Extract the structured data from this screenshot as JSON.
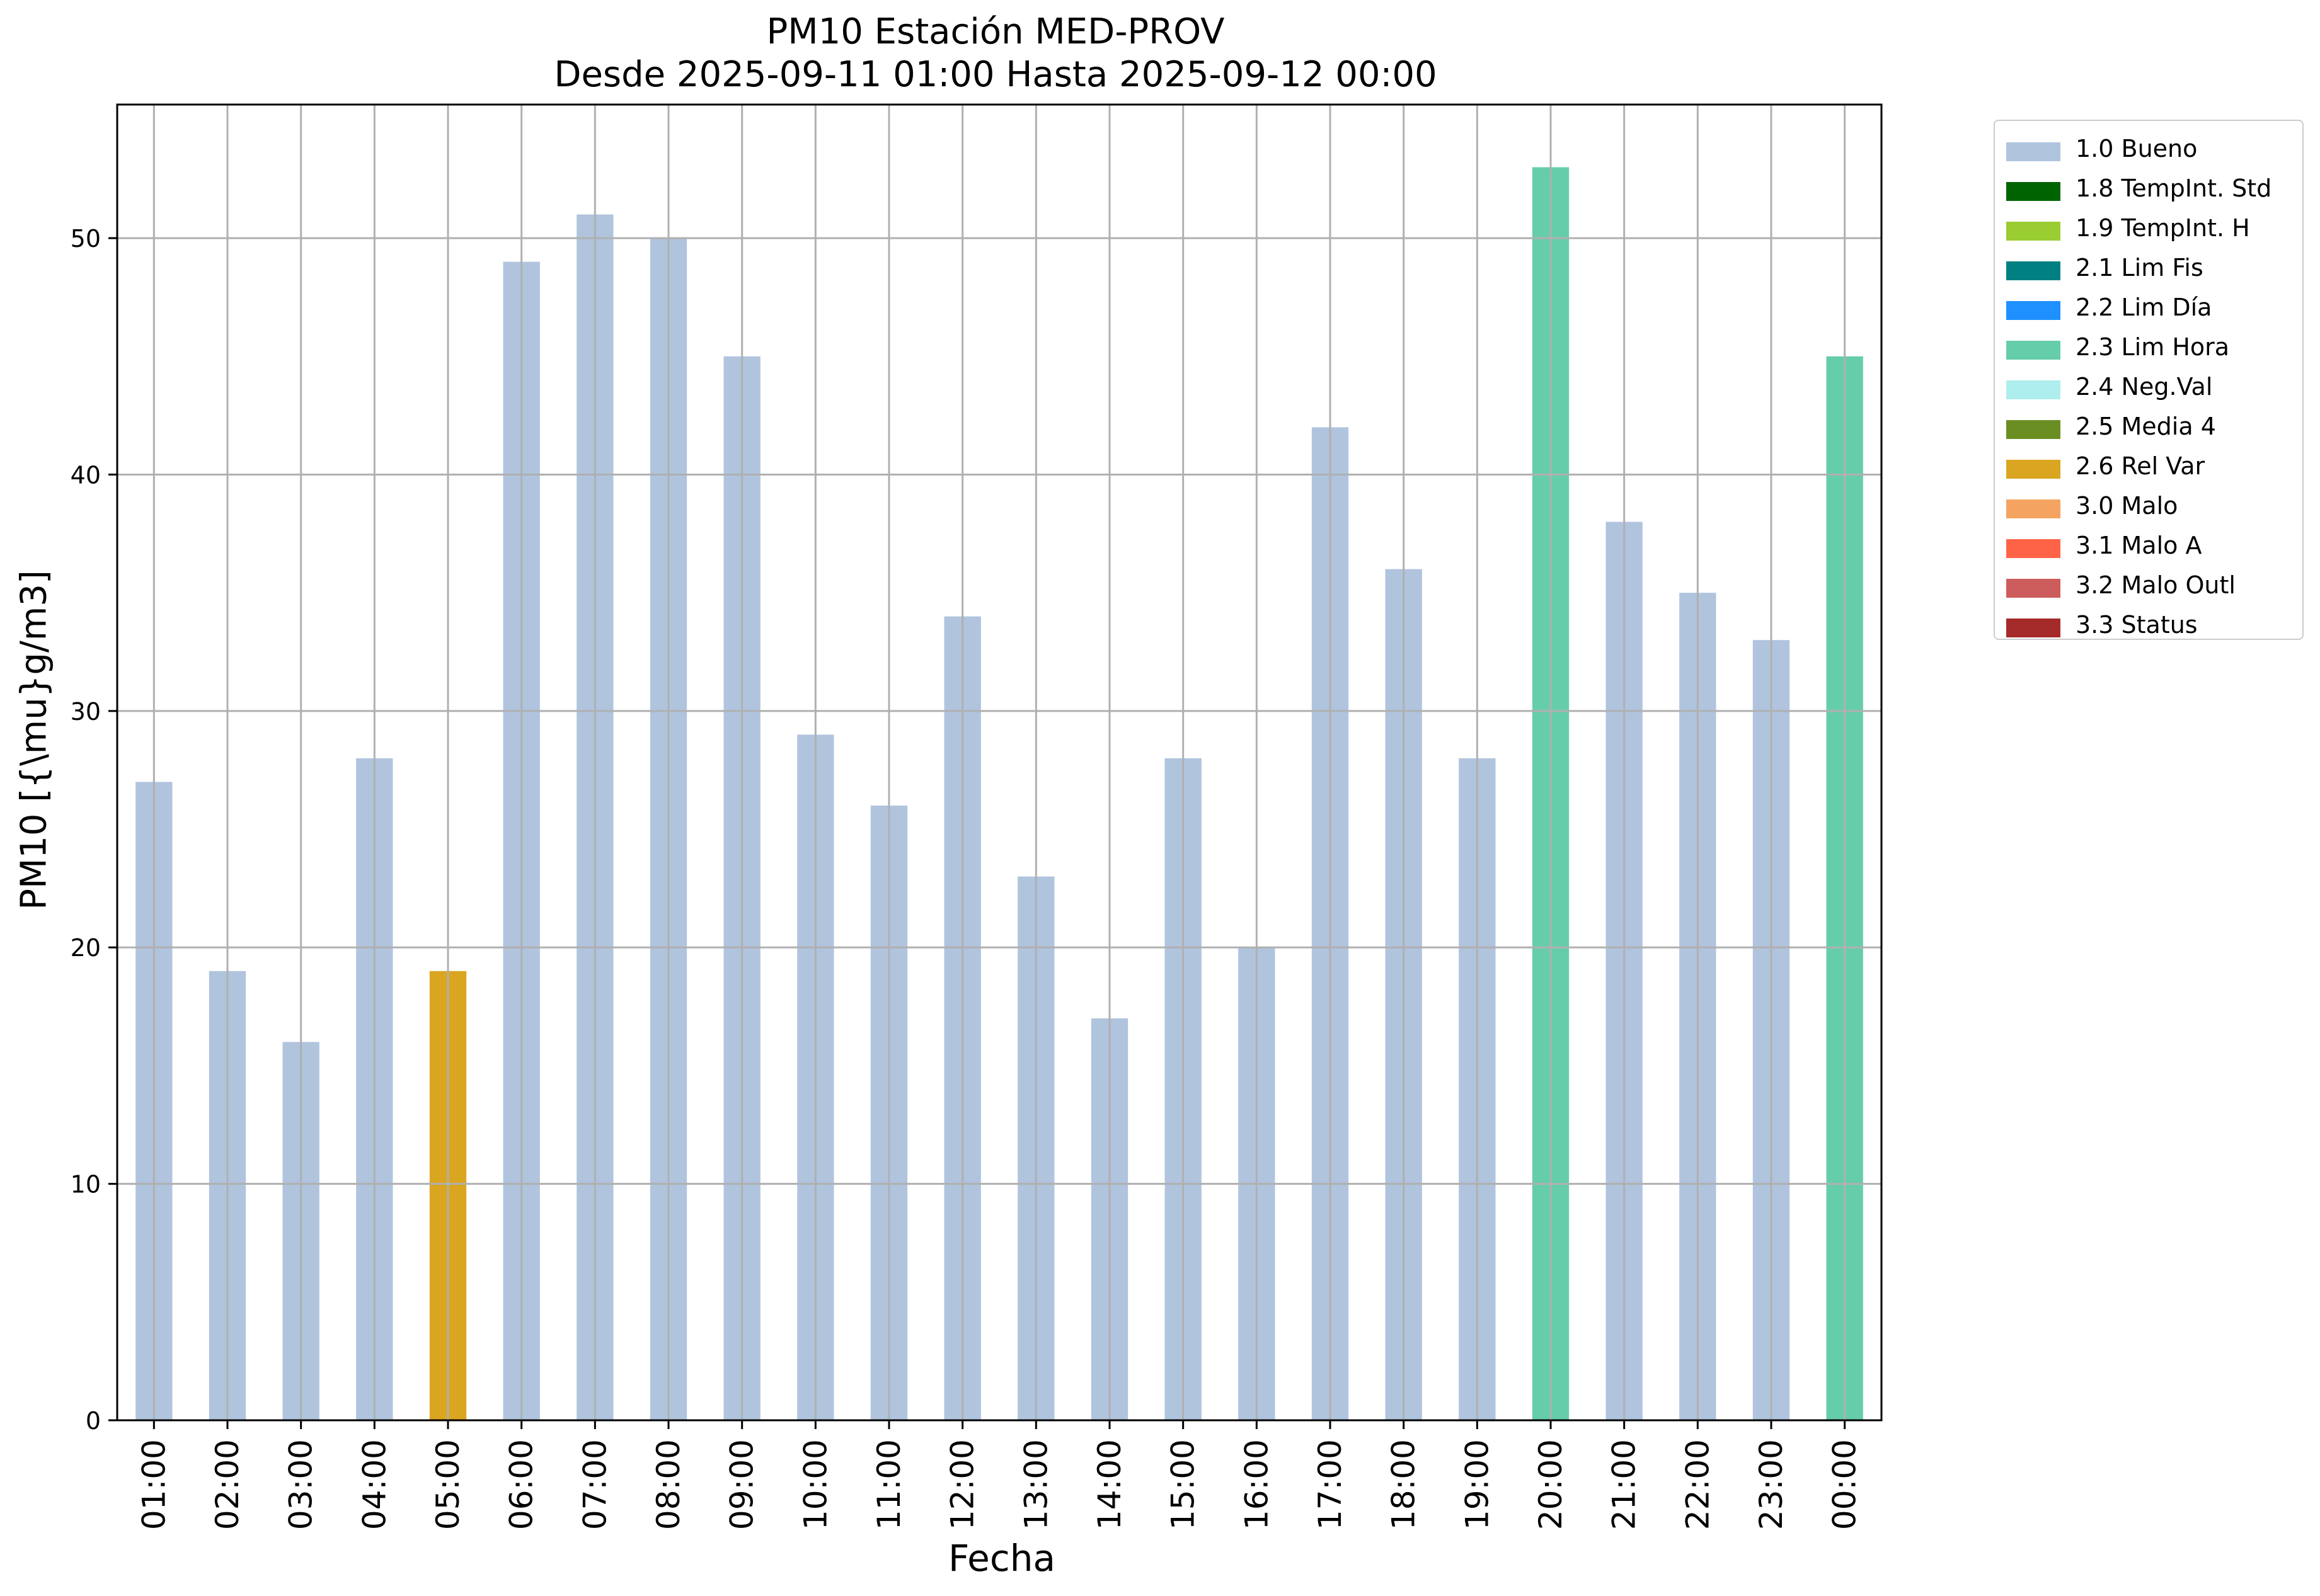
{
  "title": {
    "line1": "PM10 Estación MED-PROV",
    "line2": "Desde 2025-09-11 01:00 Hasta 2025-09-12 00:00"
  },
  "colors": {
    "1.0 Bueno": "#b0c4de",
    "1.8 TempInt. Std": "#006400",
    "1.9 TempInt. H": "#9acd32",
    "2.1 Lim Fis": "#008080",
    "2.2 Lim Día": "#1e90ff",
    "2.3 Lim Hora": "#66cdaa",
    "2.4 Neg.Val": "#afeeee",
    "2.5 Media 4": "#6b8e23",
    "2.6 Rel Var": "#daa520",
    "3.0 Malo": "#f4a460",
    "3.1 Malo A": "#ff6347",
    "3.2 Malo Outl": "#cd5c5c",
    "3.3 Status": "#a52a2a"
  },
  "legend": [
    "1.0 Bueno",
    "1.8 TempInt. Std",
    "1.9 TempInt. H",
    "2.1 Lim Fis",
    "2.2 Lim Día",
    "2.3 Lim Hora",
    "2.4 Neg.Val",
    "2.5 Media 4",
    "2.6 Rel Var",
    "3.0 Malo",
    "3.1 Malo A",
    "3.2 Malo Outl",
    "3.3 Status"
  ],
  "chart_data": {
    "type": "bar",
    "title": "PM10 Estación MED-PROV\nDesde 2025-09-11 01:00 Hasta 2025-09-12 00:00",
    "xlabel": "Fecha",
    "ylabel": "PM10 [{\\mu}g/m3]",
    "ylim": [
      0,
      55.65
    ],
    "yticks": [
      0,
      10,
      20,
      30,
      40,
      50
    ],
    "grid": true,
    "legend_position": "outside-right",
    "categories": [
      "01:00",
      "02:00",
      "03:00",
      "04:00",
      "05:00",
      "06:00",
      "07:00",
      "08:00",
      "09:00",
      "10:00",
      "11:00",
      "12:00",
      "13:00",
      "14:00",
      "15:00",
      "16:00",
      "17:00",
      "18:00",
      "19:00",
      "20:00",
      "21:00",
      "22:00",
      "23:00",
      "00:00"
    ],
    "values": [
      27,
      19,
      16,
      28,
      19,
      49,
      51,
      50,
      45,
      29,
      26,
      34,
      23,
      17,
      28,
      20,
      42,
      36,
      28,
      53,
      38,
      35,
      33,
      45
    ],
    "flags": [
      "1.0 Bueno",
      "1.0 Bueno",
      "1.0 Bueno",
      "1.0 Bueno",
      "2.6 Rel Var",
      "1.0 Bueno",
      "1.0 Bueno",
      "1.0 Bueno",
      "1.0 Bueno",
      "1.0 Bueno",
      "1.0 Bueno",
      "1.0 Bueno",
      "1.0 Bueno",
      "1.0 Bueno",
      "1.0 Bueno",
      "1.0 Bueno",
      "1.0 Bueno",
      "1.0 Bueno",
      "1.0 Bueno",
      "2.3 Lim Hora",
      "1.0 Bueno",
      "1.0 Bueno",
      "1.0 Bueno",
      "2.3 Lim Hora"
    ]
  }
}
